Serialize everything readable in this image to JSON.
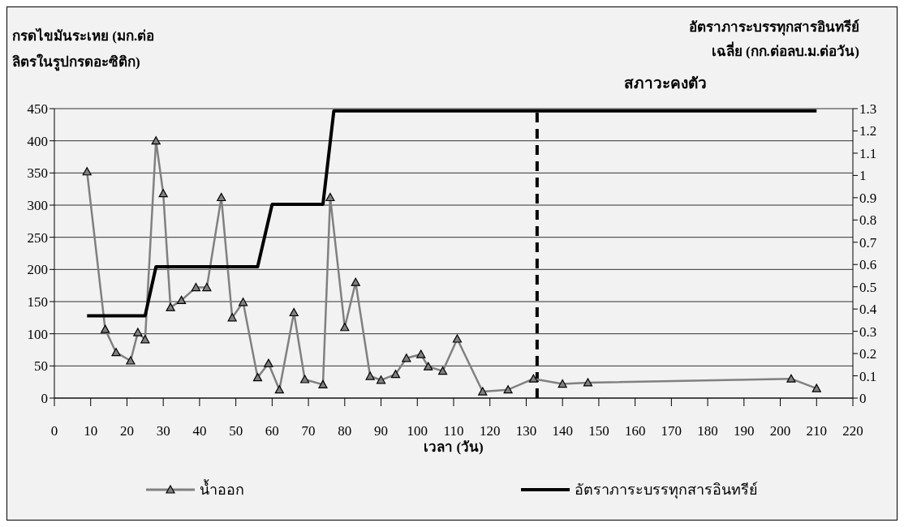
{
  "chart_data": {
    "type": "line",
    "xlabel": "เวลา (วัน)",
    "ylabel": "กรดไขมันระเหย (มก.ต่อลิตรในรูปกรดอะซิติก)",
    "y2label": "อัตราภาระบรรทุกสารอินทรีย์เฉลี่ย (กก.ต่อลบ.ม.ต่อวัน)",
    "annotations": [
      "สภาวะคงตัว"
    ],
    "xlim": [
      0,
      220
    ],
    "xticks": [
      0,
      10,
      20,
      30,
      40,
      50,
      60,
      70,
      80,
      90,
      100,
      110,
      120,
      130,
      140,
      150,
      160,
      170,
      180,
      190,
      200,
      210,
      220
    ],
    "ylim": [
      0,
      450
    ],
    "yticks": [
      0,
      50,
      100,
      150,
      200,
      250,
      300,
      350,
      400,
      450
    ],
    "y2lim": [
      0,
      1.3
    ],
    "y2ticks": [
      0,
      0.1,
      0.2,
      0.3,
      0.4,
      0.5,
      0.6,
      0.7,
      0.8,
      0.9,
      1,
      1.1,
      1.2,
      1.3
    ],
    "grid": "y",
    "legend": "bottom",
    "ref_lines": [
      {
        "axis": "x",
        "value": 133,
        "color": "#000000",
        "line_style": "dashed"
      }
    ],
    "series": [
      {
        "name": "น้ำออก",
        "color": "#808080",
        "marker": "triangle",
        "x": [
          9,
          14,
          17,
          21,
          23,
          25,
          28,
          30,
          32,
          35,
          39,
          42,
          46,
          49,
          52,
          56,
          59,
          62,
          66,
          69,
          74,
          76,
          80,
          83,
          87,
          90,
          94,
          97,
          101,
          103,
          107,
          111,
          118,
          125,
          132,
          140,
          147,
          203,
          210
        ],
        "values": [
          352,
          107,
          71,
          58,
          102,
          91,
          400,
          318,
          141,
          152,
          172,
          172,
          312,
          125,
          149,
          32,
          54,
          13,
          133,
          29,
          21,
          312,
          110,
          180,
          34,
          28,
          37,
          62,
          68,
          49,
          42,
          92,
          10,
          13,
          30,
          22,
          24,
          30,
          15
        ]
      },
      {
        "name": "อัตราภาระบรรทุกสารอินทรีย์",
        "color": "#000000",
        "marker": "none",
        "axis": "y2",
        "x": [
          9,
          25,
          28,
          56,
          60,
          74,
          77,
          210
        ],
        "values": [
          0.37,
          0.37,
          0.59,
          0.59,
          0.87,
          0.87,
          1.29,
          1.29
        ]
      }
    ]
  }
}
